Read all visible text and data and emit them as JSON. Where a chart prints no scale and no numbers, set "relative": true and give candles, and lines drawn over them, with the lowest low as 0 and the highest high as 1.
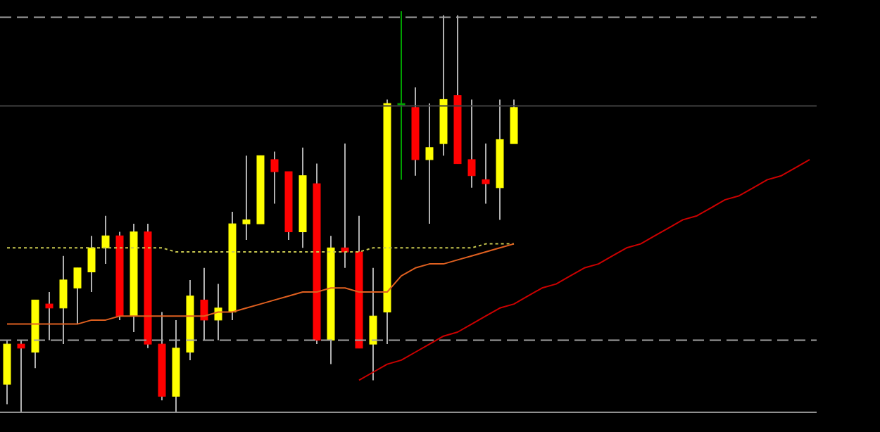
{
  "chart_data": {
    "type": "candlestick",
    "relative": true,
    "tick_labels": false,
    "categories": [
      null,
      null,
      null,
      null,
      null,
      null,
      null,
      null,
      null,
      null,
      null,
      null,
      null,
      null,
      null,
      null,
      null,
      null,
      null,
      null,
      null,
      null,
      null,
      null,
      null,
      null,
      null,
      null,
      null,
      null,
      null,
      null,
      null,
      null,
      null,
      null,
      null,
      null,
      null,
      null,
      null,
      null,
      null,
      null,
      null,
      null,
      null,
      null,
      null,
      null,
      null,
      null,
      null,
      null,
      null,
      null,
      null,
      null
    ],
    "ohlc": [
      [
        0.07,
        0.18,
        0.02,
        0.17
      ],
      [
        0.17,
        0.18,
        0.0,
        0.16
      ],
      [
        0.15,
        0.28,
        0.11,
        0.28
      ],
      [
        0.27,
        0.3,
        0.18,
        0.26
      ],
      [
        0.26,
        0.39,
        0.17,
        0.33
      ],
      [
        0.31,
        0.36,
        0.22,
        0.36
      ],
      [
        0.35,
        0.44,
        0.3,
        0.41
      ],
      [
        0.41,
        0.49,
        0.37,
        0.44
      ],
      [
        0.44,
        0.45,
        0.23,
        0.24
      ],
      [
        0.24,
        0.47,
        0.2,
        0.45
      ],
      [
        0.45,
        0.47,
        0.16,
        0.17
      ],
      [
        0.17,
        0.25,
        0.03,
        0.04
      ],
      [
        0.04,
        0.23,
        0.0,
        0.16
      ],
      [
        0.15,
        0.33,
        0.13,
        0.29
      ],
      [
        0.28,
        0.36,
        0.18,
        0.23
      ],
      [
        0.23,
        0.32,
        0.18,
        0.26
      ],
      [
        0.25,
        0.5,
        0.23,
        0.47
      ],
      [
        0.47,
        0.64,
        0.43,
        0.48
      ],
      [
        0.47,
        0.64,
        0.47,
        0.64
      ],
      [
        0.63,
        0.65,
        0.52,
        0.6
      ],
      [
        0.6,
        0.6,
        0.43,
        0.45
      ],
      [
        0.45,
        0.66,
        0.41,
        0.59
      ],
      [
        0.57,
        0.62,
        0.17,
        0.18
      ],
      [
        0.18,
        0.44,
        0.12,
        0.41
      ],
      [
        0.41,
        0.67,
        0.36,
        0.4
      ],
      [
        0.4,
        0.49,
        0.16,
        0.16
      ],
      [
        0.17,
        0.36,
        0.08,
        0.24
      ],
      [
        0.25,
        0.78,
        0.17,
        0.77
      ],
      [
        0.77,
        1.0,
        0.58,
        0.77
      ],
      [
        0.76,
        0.81,
        0.59,
        0.63
      ],
      [
        0.63,
        0.77,
        0.47,
        0.66
      ],
      [
        0.67,
        0.99,
        0.64,
        0.78
      ],
      [
        0.79,
        0.99,
        0.62,
        0.62
      ],
      [
        0.63,
        0.78,
        0.56,
        0.59
      ],
      [
        0.58,
        0.67,
        0.52,
        0.57
      ],
      [
        0.56,
        0.78,
        0.48,
        0.68
      ],
      [
        0.67,
        0.78,
        0.67,
        0.76
      ],
      null,
      null,
      null,
      null,
      null,
      null,
      null,
      null,
      null,
      null,
      null,
      null,
      null,
      null,
      null,
      null,
      null,
      null,
      null,
      null,
      null
    ],
    "colors": [
      "#ffff00",
      "#ff0000",
      "#ffff00",
      "#ff0000",
      "#ffff00",
      "#ffff00",
      "#ffff00",
      "#ffff00",
      "#ff0000",
      "#ffff00",
      "#ff0000",
      "#ff0000",
      "#ffff00",
      "#ffff00",
      "#ff0000",
      "#ffff00",
      "#ffff00",
      "#ffff00",
      "#ffff00",
      "#ff0000",
      "#ff0000",
      "#ffff00",
      "#ff0000",
      "#ffff00",
      "#ff0000",
      "#ff0000",
      "#ffff00",
      "#ffff00",
      "#00a000",
      "#ff0000",
      "#ffff00",
      "#ffff00",
      "#ff0000",
      "#ff0000",
      "#ff0000",
      "#ffff00",
      "#ffff00",
      null,
      null,
      null,
      null,
      null,
      null,
      null,
      null,
      null,
      null,
      null,
      null,
      null,
      null,
      null,
      null,
      null,
      null,
      null,
      null,
      null
    ],
    "series": [
      {
        "type": "line",
        "color": "#c8c850",
        "line_style": "dotted",
        "values": [
          0.41,
          0.41,
          0.41,
          0.41,
          0.41,
          0.41,
          0.41,
          0.41,
          0.41,
          0.41,
          0.41,
          0.41,
          0.4,
          0.4,
          0.4,
          0.4,
          0.4,
          0.4,
          0.4,
          0.4,
          0.4,
          0.4,
          0.4,
          0.4,
          0.4,
          0.4,
          0.41,
          0.41,
          0.41,
          0.41,
          0.41,
          0.41,
          0.41,
          0.41,
          0.42,
          0.42,
          0.42,
          null,
          null,
          null,
          null,
          null,
          null,
          null,
          null,
          null,
          null,
          null,
          null,
          null,
          null,
          null,
          null,
          null,
          null,
          null,
          null,
          null
        ]
      },
      {
        "type": "line",
        "color": "#e06020",
        "line_style": "solid",
        "values": [
          0.22,
          0.22,
          0.22,
          0.22,
          0.22,
          0.22,
          0.23,
          0.23,
          0.24,
          0.24,
          0.24,
          0.24,
          0.24,
          0.24,
          0.24,
          0.25,
          0.25,
          0.26,
          0.27,
          0.28,
          0.29,
          0.3,
          0.3,
          0.31,
          0.31,
          0.3,
          0.3,
          0.3,
          0.34,
          0.36,
          0.37,
          0.37,
          0.38,
          0.39,
          0.4,
          0.41,
          0.42,
          null,
          null,
          null,
          null,
          null,
          null,
          null,
          null,
          null,
          null,
          null,
          null,
          null,
          null,
          null,
          null,
          null,
          null,
          null,
          null,
          null
        ]
      },
      {
        "type": "line",
        "color": "#cc0000",
        "line_style": "solid",
        "values": [
          null,
          null,
          null,
          null,
          null,
          null,
          null,
          null,
          null,
          null,
          null,
          null,
          null,
          null,
          null,
          null,
          null,
          null,
          null,
          null,
          null,
          null,
          null,
          null,
          null,
          0.08,
          0.1,
          0.12,
          0.13,
          0.15,
          0.17,
          0.19,
          0.2,
          0.22,
          0.24,
          0.26,
          0.27,
          0.29,
          0.31,
          0.32,
          0.34,
          0.36,
          0.37,
          0.39,
          0.41,
          0.42,
          0.44,
          0.46,
          0.48,
          0.49,
          0.51,
          0.53,
          0.54,
          0.56,
          0.58,
          0.59,
          0.61,
          0.63
        ]
      }
    ],
    "ref_lines": [
      {
        "axis": "y",
        "value": 0.985,
        "color": "#a0a0a0",
        "line_style": "dashed"
      },
      {
        "axis": "y",
        "value": 0.18,
        "color": "#a0a0a0",
        "line_style": "dashed"
      },
      {
        "axis": "y",
        "value": 0.764,
        "color": "#404040",
        "line_style": "solid"
      }
    ]
  }
}
